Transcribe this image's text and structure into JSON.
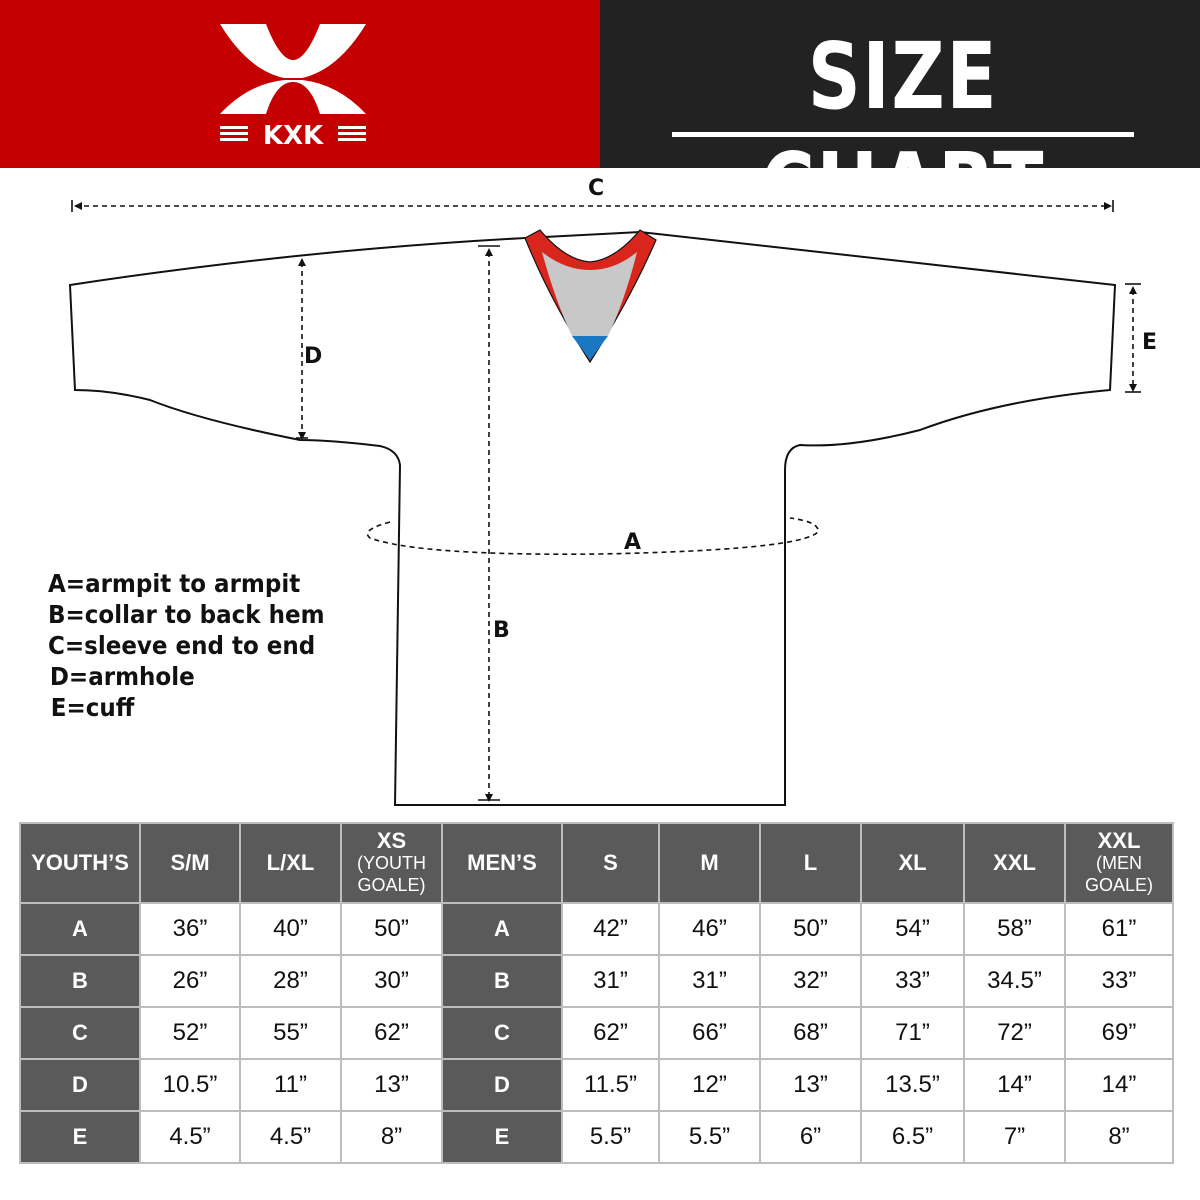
{
  "brand": {
    "logo_text": "KXK",
    "red": "#c40000",
    "dark": "#222222"
  },
  "header": {
    "title": "SIZE CHART"
  },
  "diagram": {
    "labels": {
      "a": "A",
      "b": "B",
      "c": "C",
      "d": "D",
      "e": "E"
    },
    "collar_colors": {
      "trim": "#d9261c",
      "inner": "#c8c8c8",
      "tag": "#1a78c2"
    }
  },
  "legend": [
    "A=armpit to armpit",
    "B=collar to back hem",
    "C=sleeve end to end",
    "D=armhole",
    "E=cuff"
  ],
  "table": {
    "youth": {
      "header": "YOUTH’S",
      "columns": [
        {
          "size": "S/M",
          "note": ""
        },
        {
          "size": "L/XL",
          "note": ""
        },
        {
          "size": "XS",
          "note": "(YOUTH GOALE)"
        }
      ],
      "rows": [
        {
          "label": "A",
          "values": [
            "36”",
            "40”",
            "50”"
          ]
        },
        {
          "label": "B",
          "values": [
            "26”",
            "28”",
            "30”"
          ]
        },
        {
          "label": "C",
          "values": [
            "52”",
            "55”",
            "62”"
          ]
        },
        {
          "label": "D",
          "values": [
            "10.5”",
            "11”",
            "13”"
          ]
        },
        {
          "label": "E",
          "values": [
            "4.5”",
            "4.5”",
            "8”"
          ]
        }
      ]
    },
    "men": {
      "header": "MEN’S",
      "columns": [
        {
          "size": "S",
          "note": ""
        },
        {
          "size": "M",
          "note": ""
        },
        {
          "size": "L",
          "note": ""
        },
        {
          "size": "XL",
          "note": ""
        },
        {
          "size": "XXL",
          "note": ""
        },
        {
          "size": "XXL",
          "note": "(MEN GOALE)"
        }
      ],
      "rows": [
        {
          "label": "A",
          "values": [
            "42”",
            "46”",
            "50”",
            "54”",
            "58”",
            "61”"
          ]
        },
        {
          "label": "B",
          "values": [
            "31”",
            "31”",
            "32”",
            "33”",
            "34.5”",
            "33”"
          ]
        },
        {
          "label": "C",
          "values": [
            "62”",
            "66”",
            "68”",
            "71”",
            "72”",
            "69”"
          ]
        },
        {
          "label": "D",
          "values": [
            "11.5”",
            "12”",
            "13”",
            "13.5”",
            "14”",
            "14”"
          ]
        },
        {
          "label": "E",
          "values": [
            "5.5”",
            "5.5”",
            "6”",
            "6.5”",
            "7”",
            "8”"
          ]
        }
      ]
    }
  }
}
